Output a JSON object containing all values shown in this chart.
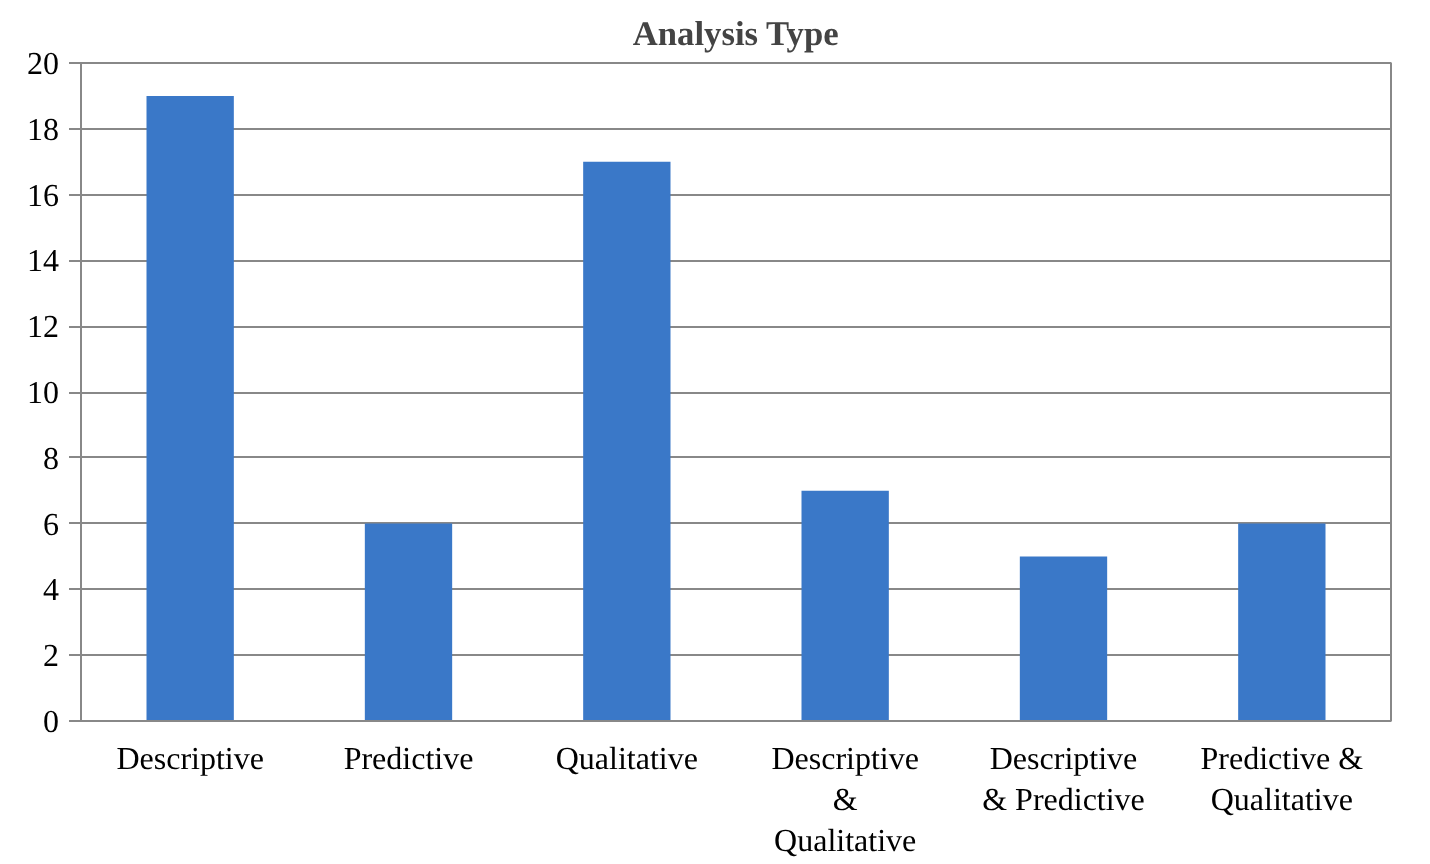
{
  "chart_data": {
    "type": "bar",
    "title": "Analysis Type",
    "categories": [
      "Descriptive",
      "Predictive",
      "Qualitative",
      "Descriptive & Qualitative",
      "Descriptive & Predictive",
      "Predictive & Qualitative"
    ],
    "values": [
      19,
      6,
      17,
      7,
      5,
      6
    ],
    "color": "#3a78c8",
    "ylim": [
      0,
      20
    ],
    "yticks": [
      0,
      2,
      4,
      6,
      8,
      10,
      12,
      14,
      16,
      18,
      20
    ],
    "grid": "y"
  }
}
